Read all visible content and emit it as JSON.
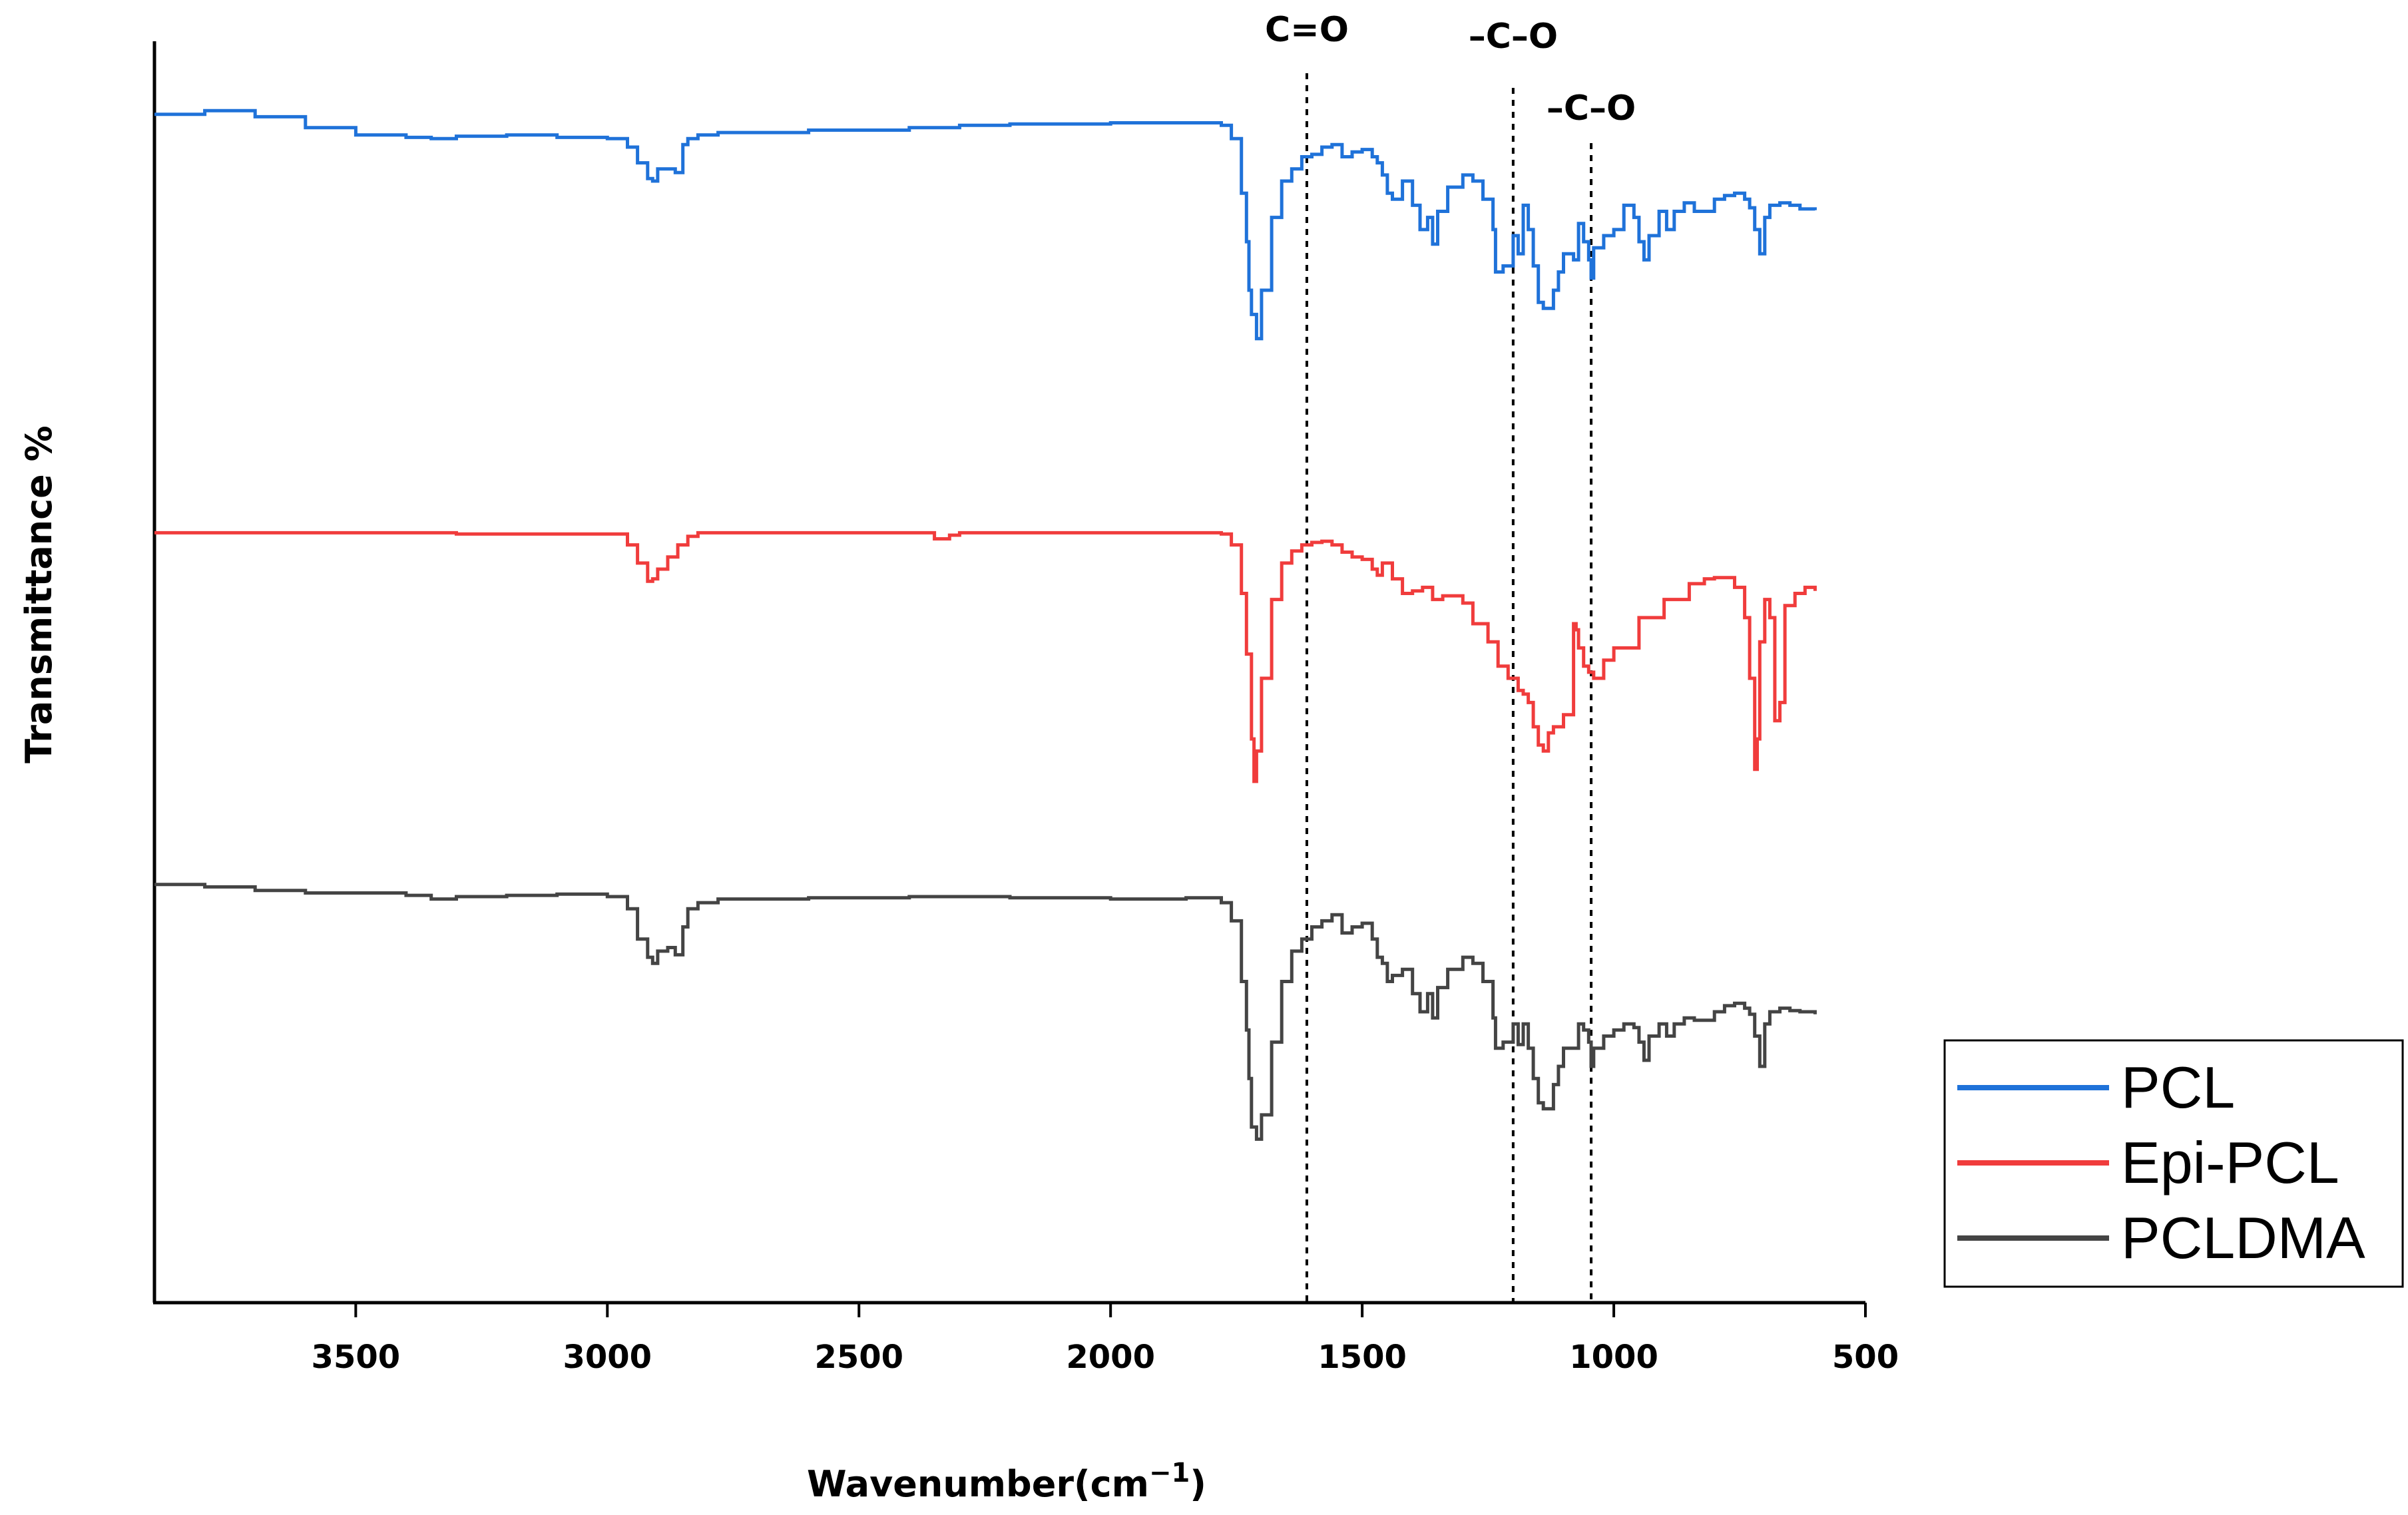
{
  "chart_data": {
    "type": "line",
    "title": "",
    "xlabel": "Wavenumber(cm",
    "xlabel_sup": "−1",
    "xlabel_end": ")",
    "ylabel": "Transmittance %",
    "xlim": [
      3900,
      500
    ],
    "ylim": [
      0,
      100
    ],
    "xticks": [
      3500,
      3000,
      2500,
      2000,
      1500,
      1000,
      500
    ],
    "grid": false,
    "legend_position": "bottom-right",
    "annotations": [
      {
        "label": "C=O",
        "x": 1610
      },
      {
        "label": "–C–O",
        "x": 1200
      },
      {
        "label": "–C–O",
        "x": 1045
      }
    ],
    "series": [
      {
        "name": "PCL",
        "color": "#1f72d9",
        "x": [
          3900,
          3800,
          3700,
          3600,
          3500,
          3400,
          3350,
          3300,
          3200,
          3100,
          3000,
          2960,
          2940,
          2920,
          2910,
          2900,
          2880,
          2865,
          2850,
          2840,
          2820,
          2780,
          2600,
          2400,
          2300,
          2200,
          2000,
          1850,
          1780,
          1760,
          1740,
          1730,
          1725,
          1720,
          1710,
          1700,
          1680,
          1660,
          1640,
          1620,
          1600,
          1580,
          1560,
          1540,
          1520,
          1500,
          1480,
          1470,
          1460,
          1450,
          1440,
          1420,
          1400,
          1385,
          1370,
          1360,
          1350,
          1330,
          1300,
          1280,
          1260,
          1240,
          1235,
          1220,
          1200,
          1190,
          1180,
          1170,
          1160,
          1150,
          1140,
          1120,
          1110,
          1100,
          1080,
          1070,
          1060,
          1050,
          1045,
          1040,
          1020,
          1000,
          980,
          960,
          950,
          940,
          930,
          910,
          895,
          880,
          860,
          840,
          800,
          780,
          760,
          740,
          730,
          720,
          710,
          700,
          690,
          670,
          650,
          630,
          600
        ],
        "y": [
          96.5,
          96.8,
          96.3,
          95.4,
          94.8,
          94.6,
          94.5,
          94.7,
          94.8,
          94.6,
          94.5,
          93.8,
          92.5,
          91.2,
          91.0,
          92.0,
          92.0,
          91.7,
          94.0,
          94.5,
          94.8,
          95.0,
          95.2,
          95.4,
          95.6,
          95.7,
          95.8,
          95.8,
          95.6,
          94.5,
          90.0,
          86.0,
          82.0,
          80.0,
          78.0,
          82.0,
          88.0,
          91.0,
          92.0,
          93.0,
          93.2,
          93.8,
          94.0,
          93.0,
          93.4,
          93.6,
          93.0,
          92.5,
          91.5,
          90.0,
          89.5,
          91.0,
          89.0,
          87.0,
          88.0,
          85.8,
          88.5,
          90.5,
          91.5,
          91.0,
          89.5,
          87.0,
          83.5,
          84.0,
          86.5,
          85.0,
          89.0,
          87.0,
          84.0,
          81.0,
          80.5,
          82.0,
          83.5,
          85.0,
          84.5,
          87.5,
          86.0,
          84.5,
          83.0,
          85.5,
          86.5,
          87.0,
          89.0,
          88.0,
          86.0,
          84.5,
          86.5,
          88.5,
          87.0,
          88.5,
          89.2,
          88.5,
          89.5,
          89.8,
          90.0,
          89.5,
          88.8,
          87.0,
          85.0,
          88.0,
          89.0,
          89.2,
          89.0,
          88.7,
          88.6
        ]
      },
      {
        "name": "Epi-PCL",
        "color": "#f03c3c",
        "x": [
          3900,
          3700,
          3500,
          3300,
          3000,
          2960,
          2940,
          2920,
          2910,
          2900,
          2880,
          2860,
          2840,
          2820,
          2780,
          2600,
          2400,
          2350,
          2320,
          2300,
          2200,
          2000,
          1850,
          1780,
          1760,
          1740,
          1730,
          1720,
          1715,
          1710,
          1700,
          1680,
          1660,
          1640,
          1620,
          1600,
          1580,
          1560,
          1540,
          1520,
          1500,
          1480,
          1470,
          1460,
          1440,
          1420,
          1400,
          1380,
          1360,
          1340,
          1300,
          1280,
          1250,
          1230,
          1210,
          1190,
          1180,
          1170,
          1160,
          1150,
          1140,
          1130,
          1120,
          1100,
          1080,
          1075,
          1070,
          1060,
          1050,
          1040,
          1020,
          1000,
          950,
          900,
          850,
          820,
          800,
          780,
          760,
          740,
          730,
          720,
          715,
          710,
          700,
          690,
          680,
          670,
          660,
          640,
          620,
          600
        ],
        "y": [
          62.0,
          62.0,
          62.0,
          61.9,
          61.9,
          61.0,
          59.5,
          58.0,
          58.2,
          59.0,
          60.0,
          61.0,
          61.7,
          62.0,
          62.0,
          62.0,
          62.0,
          61.5,
          61.8,
          62.0,
          62.0,
          62.0,
          62.0,
          61.9,
          61.0,
          57.0,
          52.0,
          45.0,
          41.5,
          44.0,
          50.0,
          56.5,
          59.5,
          60.5,
          61.0,
          61.2,
          61.3,
          61.0,
          60.4,
          60.0,
          59.8,
          59.0,
          58.5,
          59.5,
          58.2,
          57.0,
          57.2,
          57.5,
          56.5,
          56.8,
          56.2,
          54.5,
          53.0,
          51.0,
          50.0,
          49.0,
          48.7,
          48.0,
          46.0,
          44.5,
          44.0,
          45.5,
          46.0,
          47.0,
          54.5,
          54.0,
          52.5,
          51.0,
          50.5,
          50.0,
          51.5,
          52.5,
          55.0,
          56.5,
          57.8,
          58.2,
          58.3,
          58.3,
          57.5,
          55.0,
          50.0,
          42.5,
          45.0,
          53.0,
          56.5,
          55.0,
          46.5,
          48.0,
          56.0,
          57.0,
          57.5,
          57.2
        ]
      },
      {
        "name": "PCLDMA",
        "color": "#444444",
        "x": [
          3900,
          3800,
          3700,
          3600,
          3500,
          3400,
          3350,
          3300,
          3200,
          3100,
          3000,
          2960,
          2940,
          2920,
          2910,
          2900,
          2880,
          2865,
          2850,
          2840,
          2820,
          2780,
          2600,
          2400,
          2300,
          2200,
          2000,
          1850,
          1780,
          1760,
          1740,
          1730,
          1725,
          1720,
          1710,
          1700,
          1680,
          1660,
          1640,
          1620,
          1600,
          1580,
          1560,
          1540,
          1520,
          1500,
          1480,
          1470,
          1460,
          1450,
          1440,
          1420,
          1400,
          1385,
          1370,
          1360,
          1350,
          1330,
          1300,
          1280,
          1260,
          1240,
          1235,
          1220,
          1200,
          1190,
          1180,
          1170,
          1160,
          1150,
          1140,
          1120,
          1110,
          1100,
          1080,
          1070,
          1060,
          1050,
          1045,
          1040,
          1020,
          1000,
          980,
          960,
          950,
          940,
          930,
          910,
          895,
          880,
          860,
          840,
          800,
          780,
          760,
          740,
          730,
          720,
          710,
          700,
          690,
          670,
          650,
          630,
          600
        ],
        "y": [
          33.0,
          32.8,
          32.5,
          32.3,
          32.3,
          32.1,
          31.8,
          32.0,
          32.1,
          32.2,
          32.0,
          31.0,
          28.5,
          27.0,
          26.5,
          27.5,
          27.8,
          27.2,
          29.5,
          31.0,
          31.5,
          31.8,
          31.9,
          32.0,
          32.0,
          31.9,
          31.8,
          31.9,
          31.5,
          30.0,
          25.0,
          21.0,
          17.0,
          13.0,
          12.0,
          14.0,
          20.0,
          25.0,
          27.5,
          28.5,
          29.5,
          30.0,
          30.5,
          29.0,
          29.5,
          29.8,
          28.5,
          27.0,
          26.5,
          25.0,
          25.5,
          26.0,
          24.0,
          22.5,
          24.0,
          22.0,
          24.5,
          26.0,
          27.0,
          26.5,
          25.0,
          22.0,
          19.5,
          20.0,
          21.5,
          19.8,
          21.5,
          19.5,
          17.0,
          15.0,
          14.5,
          16.5,
          18.0,
          19.5,
          19.5,
          21.5,
          21.0,
          20.0,
          18.0,
          19.5,
          20.5,
          21.0,
          21.5,
          21.2,
          20.0,
          18.5,
          20.5,
          21.5,
          20.5,
          21.5,
          22.0,
          21.8,
          22.5,
          23.0,
          23.2,
          22.8,
          22.3,
          20.5,
          18.0,
          21.5,
          22.5,
          22.8,
          22.6,
          22.5,
          22.3
        ]
      }
    ]
  }
}
